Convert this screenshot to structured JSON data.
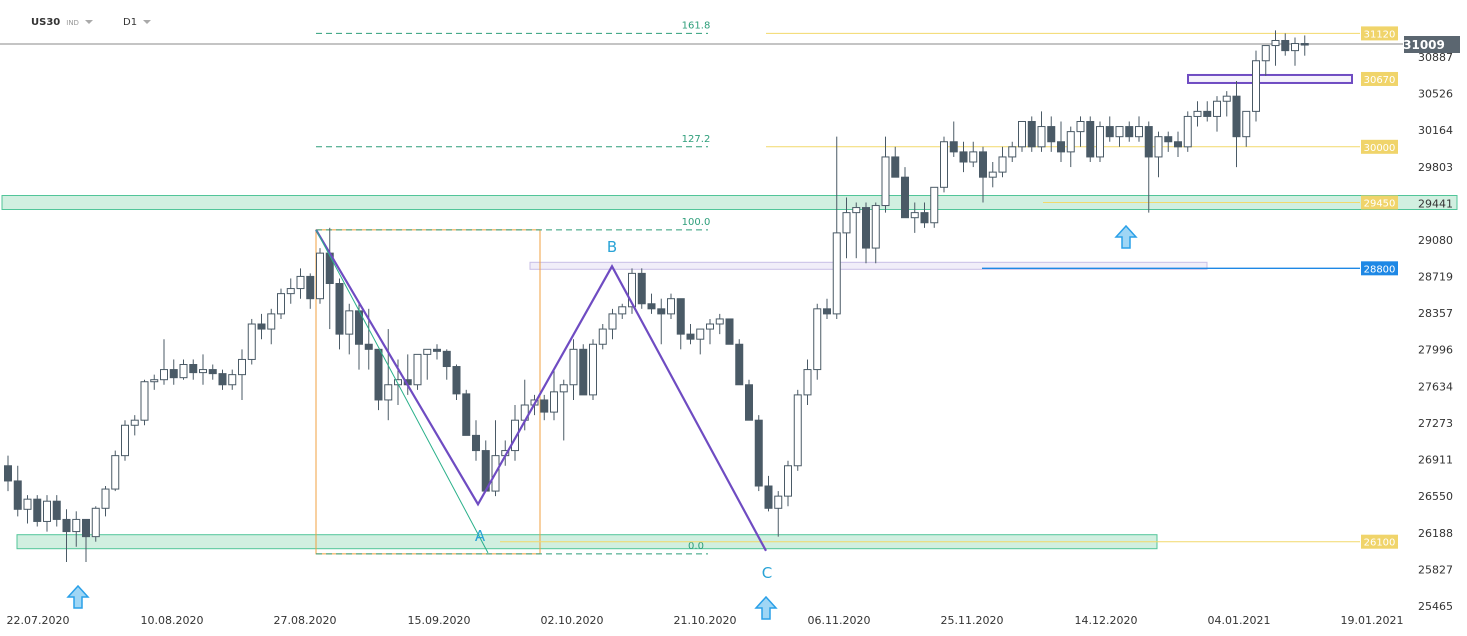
{
  "header": {
    "symbol": "US30",
    "market": "IND",
    "timeframe": "D1"
  },
  "colors": {
    "up": "#ffffff",
    "down": "#4a5a66",
    "wick": "#4a5a66",
    "fib": "#2e9e7a",
    "zone": "#cdeedd",
    "zone_border": "#3fbf8f",
    "level": "#f2d96b",
    "level_label_bg": "#f0d46a",
    "pattern": "#6f4cc2",
    "blue_level": "#1e88e5",
    "arrow": "#2aa0e8"
  },
  "chart_data": {
    "type": "candlestick",
    "title": "",
    "yaxis": {
      "range": [
        25465,
        31250
      ],
      "ticks": [
        30887,
        30526,
        30164,
        29803,
        29441,
        29080,
        28719,
        28357,
        27996,
        27634,
        27273,
        26911,
        26550,
        26188,
        25827,
        25465
      ]
    },
    "xaxis": {
      "ticks": [
        "22.07.2020",
        "10.08.2020",
        "27.08.2020",
        "15.09.2020",
        "02.10.2020",
        "21.10.2020",
        "06.11.2020",
        "25.11.2020",
        "14.12.2020",
        "04.01.2021",
        "19.01.2021"
      ]
    },
    "current_price": 31009,
    "levels": [
      {
        "label": "31120",
        "value": 31120,
        "kind": "resistance"
      },
      {
        "label": "30670",
        "value": 30670,
        "kind": "support-box"
      },
      {
        "label": "30000",
        "value": 30000,
        "kind": "resistance"
      },
      {
        "label": "29450",
        "value": 29450,
        "kind": "zone"
      },
      {
        "label": "28800",
        "value": 28800,
        "kind": "blue"
      },
      {
        "label": "26100",
        "value": 26100,
        "kind": "zone"
      }
    ],
    "fibonacci": [
      {
        "label": "161.8",
        "value": 31120
      },
      {
        "label": "127.2",
        "value": 30000
      },
      {
        "label": "100.0",
        "value": 29180
      },
      {
        "label": "0.0",
        "value": 25980
      }
    ],
    "pattern_points": [
      {
        "label": "A",
        "value": 26470
      },
      {
        "label": "B",
        "value": 28820
      },
      {
        "label": "C",
        "value": 26100
      }
    ],
    "candles": [
      [
        26850,
        26950,
        26600,
        26700
      ],
      [
        26700,
        26850,
        26350,
        26420
      ],
      [
        26420,
        26560,
        26280,
        26520
      ],
      [
        26520,
        26560,
        26250,
        26300
      ],
      [
        26300,
        26560,
        26200,
        26500
      ],
      [
        26500,
        26560,
        26250,
        26320
      ],
      [
        26320,
        26420,
        25900,
        26200
      ],
      [
        26200,
        26400,
        26050,
        26320
      ],
      [
        26320,
        26320,
        25900,
        26150
      ],
      [
        26150,
        26450,
        26100,
        26430
      ],
      [
        26430,
        26650,
        26350,
        26620
      ],
      [
        26620,
        27000,
        26600,
        26950
      ],
      [
        26950,
        27300,
        26900,
        27250
      ],
      [
        27250,
        27350,
        27150,
        27300
      ],
      [
        27300,
        27700,
        27250,
        27680
      ],
      [
        27680,
        27750,
        27600,
        27700
      ],
      [
        27700,
        28100,
        27650,
        27800
      ],
      [
        27800,
        27900,
        27650,
        27720
      ],
      [
        27720,
        27900,
        27700,
        27850
      ],
      [
        27850,
        27900,
        27700,
        27770
      ],
      [
        27770,
        27950,
        27650,
        27800
      ],
      [
        27800,
        27850,
        27700,
        27760
      ],
      [
        27760,
        27800,
        27600,
        27650
      ],
      [
        27650,
        27800,
        27600,
        27750
      ],
      [
        27750,
        28000,
        27500,
        27900
      ],
      [
        27900,
        28300,
        27850,
        28250
      ],
      [
        28250,
        28350,
        28100,
        28200
      ],
      [
        28200,
        28400,
        28050,
        28350
      ],
      [
        28350,
        28600,
        28300,
        28550
      ],
      [
        28550,
        28700,
        28450,
        28600
      ],
      [
        28600,
        28800,
        28500,
        28720
      ],
      [
        28720,
        28750,
        28400,
        28500
      ],
      [
        28500,
        29000,
        28450,
        28950
      ],
      [
        28950,
        29200,
        28200,
        28650
      ],
      [
        28650,
        28700,
        28000,
        28150
      ],
      [
        28150,
        28450,
        27950,
        28380
      ],
      [
        28380,
        28450,
        27800,
        28050
      ],
      [
        28050,
        28400,
        27800,
        28000
      ],
      [
        28000,
        28000,
        27400,
        27500
      ],
      [
        27500,
        28200,
        27300,
        27650
      ],
      [
        27650,
        27900,
        27450,
        27700
      ],
      [
        27700,
        27950,
        27550,
        27650
      ],
      [
        27650,
        27900,
        27600,
        27950
      ],
      [
        27950,
        28000,
        27700,
        28000
      ],
      [
        28000,
        28050,
        27900,
        27980
      ],
      [
        27980,
        28000,
        27700,
        27830
      ],
      [
        27830,
        27850,
        27500,
        27560
      ],
      [
        27560,
        27600,
        27150,
        27150
      ],
      [
        27150,
        27300,
        26900,
        27000
      ],
      [
        27000,
        27100,
        26600,
        26600
      ],
      [
        26600,
        27300,
        26550,
        26950
      ],
      [
        26950,
        27100,
        26850,
        27000
      ],
      [
        27000,
        27450,
        26900,
        27300
      ],
      [
        27300,
        27700,
        27200,
        27450
      ],
      [
        27450,
        27550,
        27350,
        27500
      ],
      [
        27500,
        27550,
        27300,
        27380
      ],
      [
        27380,
        27800,
        27300,
        27580
      ],
      [
        27580,
        27700,
        27100,
        27650
      ],
      [
        27650,
        28100,
        27500,
        28000
      ],
      [
        28000,
        28050,
        27550,
        27550
      ],
      [
        27550,
        28100,
        27500,
        28050
      ],
      [
        28050,
        28250,
        28000,
        28200
      ],
      [
        28200,
        28400,
        28100,
        28350
      ],
      [
        28350,
        28450,
        28300,
        28420
      ],
      [
        28420,
        28800,
        28350,
        28750
      ],
      [
        28750,
        28800,
        28400,
        28450
      ],
      [
        28450,
        28550,
        28350,
        28400
      ],
      [
        28400,
        28500,
        28050,
        28350
      ],
      [
        28350,
        28550,
        28300,
        28500
      ],
      [
        28500,
        28500,
        28000,
        28150
      ],
      [
        28150,
        28250,
        28050,
        28100
      ],
      [
        28100,
        28200,
        27950,
        28200
      ],
      [
        28200,
        28300,
        28050,
        28250
      ],
      [
        28250,
        28350,
        28150,
        28300
      ],
      [
        28300,
        28300,
        28050,
        28050
      ],
      [
        28050,
        28100,
        27650,
        27650
      ],
      [
        27650,
        27700,
        27300,
        27300
      ],
      [
        27300,
        27350,
        26600,
        26650
      ],
      [
        26650,
        26750,
        26400,
        26430
      ],
      [
        26430,
        26600,
        26150,
        26550
      ],
      [
        26550,
        26900,
        26450,
        26850
      ],
      [
        26850,
        27600,
        26800,
        27550
      ],
      [
        27550,
        27900,
        27450,
        27800
      ],
      [
        27800,
        28450,
        27700,
        28400
      ],
      [
        28400,
        28500,
        28300,
        28350
      ],
      [
        28350,
        30100,
        28300,
        29150
      ],
      [
        29150,
        29500,
        28900,
        29350
      ],
      [
        29350,
        29450,
        28900,
        29400
      ],
      [
        29400,
        29450,
        28850,
        29000
      ],
      [
        29000,
        29450,
        28850,
        29420
      ],
      [
        29420,
        30100,
        29350,
        29900
      ],
      [
        29900,
        30000,
        29700,
        29700
      ],
      [
        29700,
        29800,
        29300,
        29300
      ],
      [
        29300,
        29450,
        29150,
        29350
      ],
      [
        29350,
        29450,
        29200,
        29250
      ],
      [
        29250,
        29600,
        29200,
        29600
      ],
      [
        29600,
        30100,
        29550,
        30050
      ],
      [
        30050,
        30250,
        29900,
        29950
      ],
      [
        29950,
        30050,
        29750,
        29850
      ],
      [
        29850,
        30050,
        29800,
        29950
      ],
      [
        29950,
        30000,
        29450,
        29700
      ],
      [
        29700,
        29850,
        29600,
        29750
      ],
      [
        29750,
        30000,
        29700,
        29900
      ],
      [
        29900,
        30050,
        29850,
        30000
      ],
      [
        30000,
        30250,
        29950,
        30250
      ],
      [
        30250,
        30300,
        29950,
        30000
      ],
      [
        30000,
        30350,
        29950,
        30200
      ],
      [
        30200,
        30300,
        29950,
        30050
      ],
      [
        30050,
        30250,
        29850,
        29950
      ],
      [
        29950,
        30200,
        29800,
        30150
      ],
      [
        30150,
        30300,
        30000,
        30250
      ],
      [
        30250,
        30300,
        29850,
        29900
      ],
      [
        29900,
        30250,
        29850,
        30200
      ],
      [
        30200,
        30300,
        30050,
        30100
      ],
      [
        30100,
        30200,
        30000,
        30200
      ],
      [
        30200,
        30250,
        30050,
        30100
      ],
      [
        30100,
        30300,
        30050,
        30200
      ],
      [
        30200,
        30250,
        29350,
        29900
      ],
      [
        29900,
        30150,
        29700,
        30100
      ],
      [
        30100,
        30150,
        29950,
        30050
      ],
      [
        30050,
        30150,
        29900,
        30000
      ],
      [
        30000,
        30350,
        29950,
        30300
      ],
      [
        30300,
        30450,
        30200,
        30350
      ],
      [
        30350,
        30450,
        30250,
        30300
      ],
      [
        30300,
        30500,
        30150,
        30450
      ],
      [
        30450,
        30550,
        30300,
        30500
      ],
      [
        30500,
        30650,
        29800,
        30100
      ],
      [
        30100,
        30350,
        30000,
        30350
      ],
      [
        30350,
        30950,
        30250,
        30850
      ],
      [
        30850,
        31000,
        30700,
        31000
      ],
      [
        31000,
        31150,
        30800,
        31050
      ],
      [
        31050,
        31120,
        30900,
        30950
      ],
      [
        30950,
        31080,
        30800,
        31020
      ],
      [
        31020,
        31100,
        30900,
        31009
      ]
    ]
  }
}
